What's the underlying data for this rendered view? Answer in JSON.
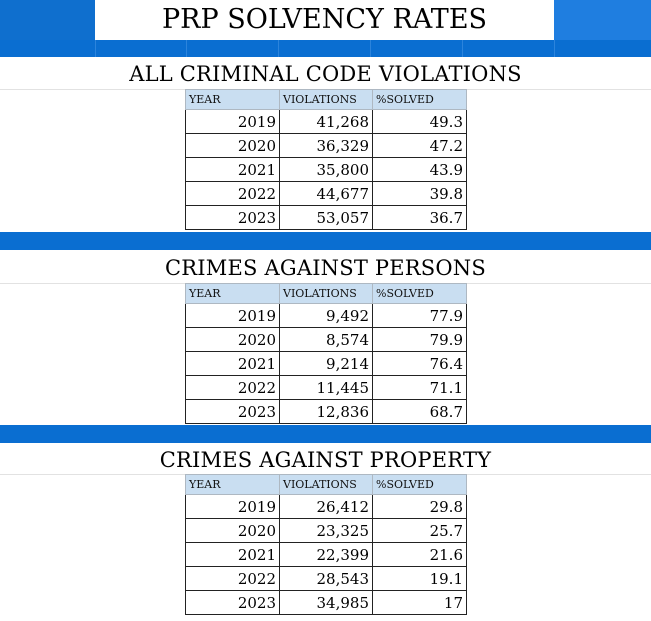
{
  "title": "PRP SOLVENCY RATES",
  "columns": {
    "year": "YEAR",
    "violations": "VIOLATIONS",
    "solved": "%SOLVED"
  },
  "sections": [
    {
      "title": "ALL CRIMINAL CODE VIOLATIONS",
      "rows": [
        {
          "year": "2019",
          "violations": "41,268",
          "solved": "49.3"
        },
        {
          "year": "2020",
          "violations": "36,329",
          "solved": "47.2"
        },
        {
          "year": "2021",
          "violations": "35,800",
          "solved": "43.9"
        },
        {
          "year": "2022",
          "violations": "44,677",
          "solved": "39.8"
        },
        {
          "year": "2023",
          "violations": "53,057",
          "solved": "36.7"
        }
      ]
    },
    {
      "title": "CRIMES AGAINST PERSONS",
      "rows": [
        {
          "year": "2019",
          "violations": "9,492",
          "solved": "77.9"
        },
        {
          "year": "2020",
          "violations": "8,574",
          "solved": "79.9"
        },
        {
          "year": "2021",
          "violations": "9,214",
          "solved": "76.4"
        },
        {
          "year": "2022",
          "violations": "11,445",
          "solved": "71.1"
        },
        {
          "year": "2023",
          "violations": "12,836",
          "solved": "68.7"
        }
      ]
    },
    {
      "title": "CRIMES AGAINST PROPERTY",
      "rows": [
        {
          "year": "2019",
          "violations": "26,412",
          "solved": "29.8"
        },
        {
          "year": "2020",
          "violations": "23,325",
          "solved": "25.7"
        },
        {
          "year": "2021",
          "violations": "22,399",
          "solved": "21.6"
        },
        {
          "year": "2022",
          "violations": "28,543",
          "solved": "19.1"
        },
        {
          "year": "2023",
          "violations": "34,985",
          "solved": "17"
        }
      ]
    }
  ]
}
